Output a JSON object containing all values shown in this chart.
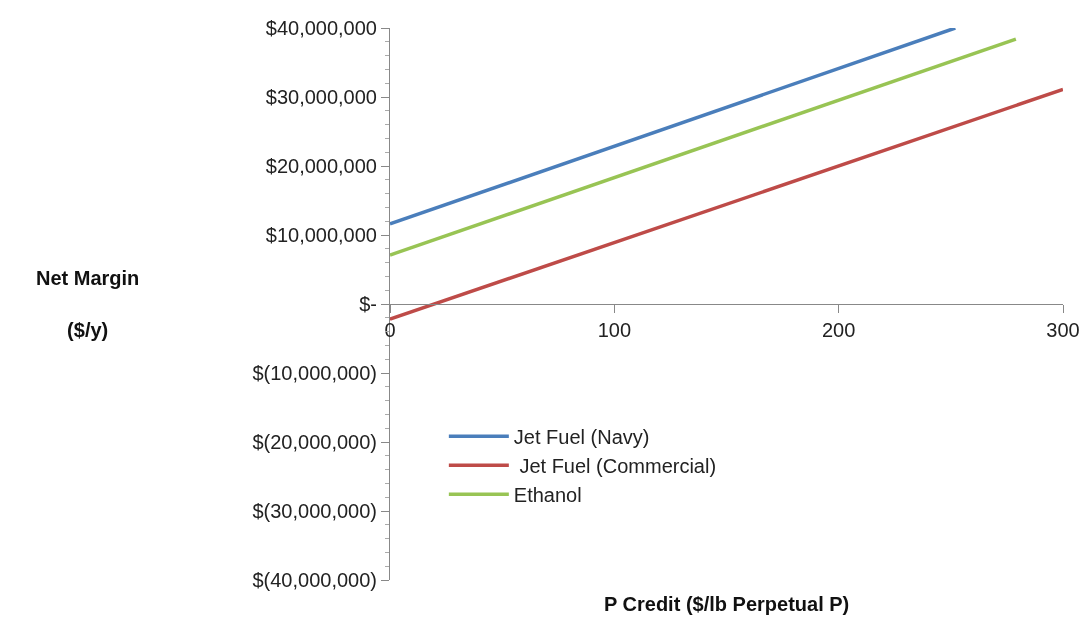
{
  "chart_data": {
    "type": "line",
    "xlabel": "P Credit ($/lb Perpetual P)",
    "ylabel": "Net Margin\n($/y)",
    "xlim": [
      0,
      300
    ],
    "xticks": [
      0,
      100,
      200,
      300
    ],
    "ylim": [
      -40000000,
      40000000
    ],
    "yticks": [
      {
        "value": -40000000,
        "label": "$(40,000,000)"
      },
      {
        "value": -30000000,
        "label": "$(30,000,000)"
      },
      {
        "value": -20000000,
        "label": "$(20,000,000)"
      },
      {
        "value": -10000000,
        "label": "$(10,000,000)"
      },
      {
        "value": 0,
        "label": "$-"
      },
      {
        "value": 10000000,
        "label": "$10,000,000"
      },
      {
        "value": 20000000,
        "label": "$20,000,000"
      },
      {
        "value": 30000000,
        "label": "$30,000,000"
      },
      {
        "value": 40000000,
        "label": "$40,000,000"
      }
    ],
    "series": [
      {
        "name": "Jet Fuel (Navy)",
        "color": "#4a7ebb",
        "x": [
          0,
          252
        ],
        "values": [
          11600000,
          40000000
        ]
      },
      {
        "name": " Jet Fuel (Commercial)",
        "color": "#be4b48",
        "x": [
          0,
          300
        ],
        "values": [
          -2200000,
          31100000
        ]
      },
      {
        "name": "Ethanol",
        "color": "#98c454",
        "x": [
          0,
          279
        ],
        "values": [
          7100000,
          38400000
        ]
      }
    ],
    "legend": "bottom left",
    "marker": "none",
    "line_style": "solid"
  }
}
